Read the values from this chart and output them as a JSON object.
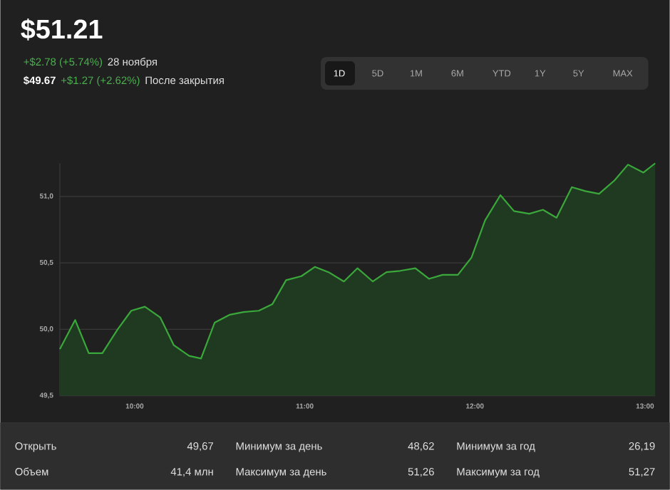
{
  "chart_data": {
    "type": "area",
    "title": "$51.21",
    "annotations": [
      "+$2.78 (+5.74%)",
      "28 ноября",
      "$49.67",
      "+$1.27 (+2.62%)",
      "После закрытия",
      "1D",
      "5D",
      "1M",
      "6M",
      "YTD",
      "1Y",
      "5Y",
      "MAX",
      "Открыть",
      "49,67",
      "Объем",
      "41,4 млн",
      "Минимум за день",
      "48,62",
      "Максимум за день",
      "51,26",
      "Минимум за год",
      "26,19",
      "Максимум за год",
      "51,27"
    ],
    "x": [
      9.56,
      9.65,
      9.73,
      9.81,
      9.9,
      9.98,
      10.06,
      10.15,
      10.23,
      10.32,
      10.39,
      10.47,
      10.56,
      10.64,
      10.73,
      10.81,
      10.89,
      10.98,
      11.06,
      11.14,
      11.23,
      11.31,
      11.4,
      11.48,
      11.56,
      11.65,
      11.73,
      11.81,
      11.9,
      11.98,
      12.06,
      12.15,
      12.23,
      12.32,
      12.4,
      12.48,
      12.57,
      12.65,
      12.73,
      12.82,
      12.9,
      12.99,
      13.06
    ],
    "values": [
      49.85,
      50.07,
      49.82,
      49.82,
      50.0,
      50.14,
      50.17,
      50.09,
      49.88,
      49.8,
      49.78,
      50.05,
      50.11,
      50.13,
      50.14,
      50.19,
      50.37,
      50.4,
      50.47,
      50.43,
      50.36,
      50.46,
      50.36,
      50.43,
      50.44,
      50.46,
      50.38,
      50.41,
      50.41,
      50.54,
      50.82,
      51.01,
      50.89,
      50.87,
      50.9,
      50.84,
      51.07,
      51.04,
      51.02,
      51.12,
      51.24,
      51.18,
      51.25
    ],
    "color": "#3aa83a",
    "xlim": [
      9.56,
      13.06
    ],
    "ylim": [
      49.5,
      51.25
    ],
    "xticks": [
      {
        "value": 10,
        "label": "10:00"
      },
      {
        "value": 11,
        "label": "11:00"
      },
      {
        "value": 12,
        "label": "12:00"
      },
      {
        "value": 13,
        "label": "13:00"
      }
    ],
    "yticks": [
      {
        "value": 49.5,
        "label": "49,5"
      },
      {
        "value": 50.0,
        "label": "50,0"
      },
      {
        "value": 50.5,
        "label": "50,5"
      },
      {
        "value": 51.0,
        "label": "51,0"
      }
    ],
    "grid": "y"
  }
}
